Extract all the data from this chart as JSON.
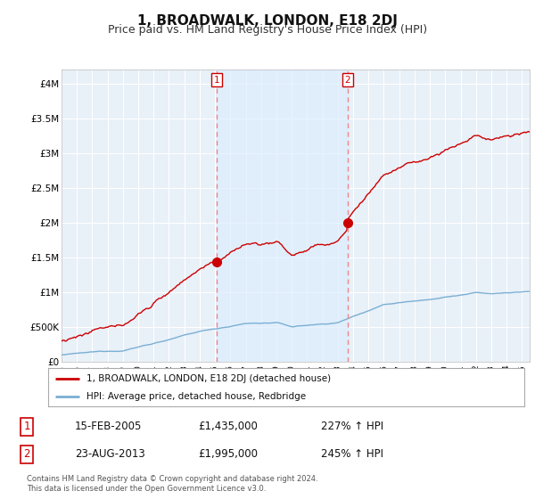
{
  "title": "1, BROADWALK, LONDON, E18 2DJ",
  "subtitle": "Price paid vs. HM Land Registry's House Price Index (HPI)",
  "ylabel_ticks": [
    "£0",
    "£500K",
    "£1M",
    "£1.5M",
    "£2M",
    "£2.5M",
    "£3M",
    "£3.5M",
    "£4M"
  ],
  "ytick_values": [
    0,
    500000,
    1000000,
    1500000,
    2000000,
    2500000,
    3000000,
    3500000,
    4000000
  ],
  "ylim": [
    0,
    4200000
  ],
  "xlim_start": 1995.0,
  "xlim_end": 2025.5,
  "red_line_color": "#cc0000",
  "blue_line_color": "#7aafd4",
  "vline_color": "#ee8888",
  "shade_color": "#ddeeff",
  "marker1_x": 2005.12,
  "marker1_y": 1435000,
  "marker2_x": 2013.64,
  "marker2_y": 1995000,
  "legend_label_red": "1, BROADWALK, LONDON, E18 2DJ (detached house)",
  "legend_label_blue": "HPI: Average price, detached house, Redbridge",
  "table_rows": [
    {
      "num": "1",
      "date": "15-FEB-2005",
      "price": "£1,435,000",
      "hpi": "227% ↑ HPI"
    },
    {
      "num": "2",
      "date": "23-AUG-2013",
      "price": "£1,995,000",
      "hpi": "245% ↑ HPI"
    }
  ],
  "footer": "Contains HM Land Registry data © Crown copyright and database right 2024.\nThis data is licensed under the Open Government Licence v3.0.",
  "bg_color": "#ffffff",
  "plot_bg_color": "#e8f0f8",
  "grid_color": "#ffffff",
  "title_fontsize": 11,
  "subtitle_fontsize": 9
}
